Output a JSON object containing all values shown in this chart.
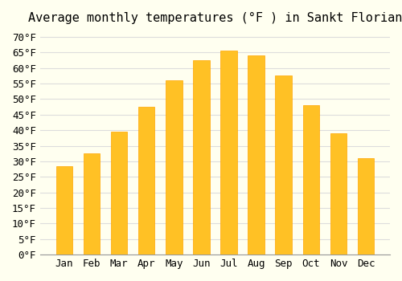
{
  "title": "Average monthly temperatures (°F ) in Sankt Florian",
  "months": [
    "Jan",
    "Feb",
    "Mar",
    "Apr",
    "May",
    "Jun",
    "Jul",
    "Aug",
    "Sep",
    "Oct",
    "Nov",
    "Dec"
  ],
  "values": [
    28.5,
    32.5,
    39.5,
    47.5,
    56.0,
    62.5,
    65.5,
    64.0,
    57.5,
    48.0,
    39.0,
    31.0
  ],
  "bar_color": "#FFC125",
  "bar_edge_color": "#FFA500",
  "background_color": "#FFFFF0",
  "grid_color": "#DDDDDD",
  "ylim": [
    0,
    72
  ],
  "yticks": [
    0,
    5,
    10,
    15,
    20,
    25,
    30,
    35,
    40,
    45,
    50,
    55,
    60,
    65,
    70
  ],
  "title_fontsize": 11,
  "tick_fontsize": 9
}
